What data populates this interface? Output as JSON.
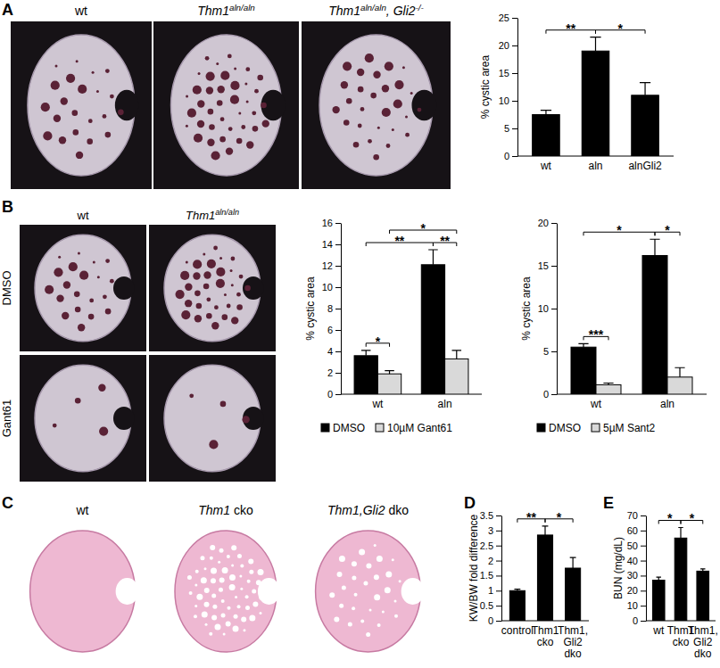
{
  "chart_data": [
    {
      "type": "image",
      "annotations": [
        "A"
      ],
      "labels": [
        [
          {
            "text": "wt"
          }
        ],
        [
          {
            "text": "Thm1",
            "italic": true
          },
          {
            "text": "aln/aln",
            "italic": true,
            "sup": true
          }
        ],
        [
          {
            "text": "Thm1",
            "italic": true
          },
          {
            "text": "aln/aln",
            "italic": true,
            "sup": true
          },
          {
            "text": ", Gli2",
            "italic": true
          },
          {
            "text": "-/-",
            "italic": true,
            "sup": true
          }
        ]
      ]
    },
    {
      "type": "bar",
      "y_label": "% cystic area",
      "categories": [
        "wt",
        "aln",
        "alnGli2"
      ],
      "values": [
        7.5,
        19,
        11
      ],
      "errors": [
        0.8,
        2.5,
        2.3
      ],
      "color": "#000000",
      "ylim": [
        0,
        25
      ],
      "yticks": [
        0,
        5,
        10,
        15,
        20,
        25
      ],
      "significance": [
        {
          "between": [
            "wt",
            "aln"
          ],
          "label": "**"
        },
        {
          "between": [
            "aln",
            "alnGli2"
          ],
          "label": "*"
        }
      ]
    },
    {
      "type": "image",
      "annotations": [
        "B"
      ],
      "columns": [
        [
          {
            "text": "wt"
          }
        ],
        [
          {
            "text": "Thm1",
            "italic": true
          },
          {
            "text": "aln/aln",
            "italic": true,
            "sup": true
          }
        ]
      ],
      "rows": [
        [
          {
            "text": "DMSO"
          }
        ],
        [
          {
            "text": "Gant61"
          }
        ]
      ]
    },
    {
      "type": "bar",
      "y_label": "% cystic area",
      "categories": [
        "wt",
        "aln"
      ],
      "series": [
        {
          "name": "DMSO",
          "color": "#000000",
          "values": [
            3.6,
            12.1
          ],
          "errors": [
            0.5,
            1.4
          ]
        },
        {
          "name": "10µM Gant61",
          "color": "#d9d9d9",
          "values": [
            1.9,
            3.3
          ],
          "errors": [
            0.3,
            0.8
          ]
        }
      ],
      "ylim": [
        0,
        16
      ],
      "yticks": [
        0,
        2,
        4,
        6,
        8,
        10,
        12,
        14,
        16
      ],
      "legend": "bottom",
      "significance": [
        {
          "between": [
            [
              "wt",
              "DMSO"
            ],
            [
              "wt",
              "10µM Gant61"
            ]
          ],
          "label": "*"
        },
        {
          "between": [
            [
              "aln",
              "DMSO"
            ],
            [
              "aln",
              "10µM Gant61"
            ]
          ],
          "label": "**"
        },
        {
          "between": [
            [
              "wt",
              "DMSO"
            ],
            [
              "aln",
              "DMSO"
            ]
          ],
          "label": "**"
        },
        {
          "between": [
            [
              "wt",
              "10µM Gant61"
            ],
            [
              "aln",
              "10µM Gant61"
            ]
          ],
          "label": "*"
        }
      ]
    },
    {
      "type": "bar",
      "y_label": "% cystic area",
      "categories": [
        "wt",
        "aln"
      ],
      "series": [
        {
          "name": "DMSO",
          "color": "#000000",
          "values": [
            5.5,
            16.2
          ],
          "errors": [
            0.4,
            1.9
          ]
        },
        {
          "name": "5µM Sant2",
          "color": "#d9d9d9",
          "values": [
            1.1,
            2.0
          ],
          "errors": [
            0.2,
            1.1
          ]
        }
      ],
      "ylim": [
        0,
        20
      ],
      "yticks": [
        0,
        5,
        10,
        15,
        20
      ],
      "legend": "bottom",
      "significance": [
        {
          "between": [
            [
              "wt",
              "DMSO"
            ],
            [
              "wt",
              "5µM Sant2"
            ]
          ],
          "label": "***"
        },
        {
          "between": [
            [
              "aln",
              "DMSO"
            ],
            [
              "aln",
              "5µM Sant2"
            ]
          ],
          "label": "*"
        },
        {
          "between": [
            [
              "wt",
              "DMSO"
            ],
            [
              "aln",
              "DMSO"
            ]
          ],
          "label": "*"
        }
      ]
    },
    {
      "type": "image",
      "annotations": [
        "C"
      ],
      "labels": [
        [
          {
            "text": "wt"
          }
        ],
        [
          {
            "text": "Thm1",
            "italic": true
          },
          {
            "text": " cko"
          }
        ],
        [
          {
            "text": "Thm1,Gli2",
            "italic": true
          },
          {
            "text": " dko"
          }
        ]
      ]
    },
    {
      "type": "bar",
      "annotations": [
        "D"
      ],
      "y_label": "KW/BW fold difference",
      "categories": [
        "control",
        "Thm1 cko",
        "Thm1, Gli2 dko"
      ],
      "values": [
        1.0,
        2.85,
        1.75
      ],
      "errors": [
        0.05,
        0.3,
        0.35
      ],
      "color": "#000000",
      "ylim": [
        0,
        3.5
      ],
      "yticks": [
        0,
        0.5,
        1,
        1.5,
        2,
        2.5,
        3,
        3.5
      ],
      "significance": [
        {
          "between": [
            "control",
            "Thm1 cko"
          ],
          "label": "**"
        },
        {
          "between": [
            "Thm1 cko",
            "Thm1, Gli2 dko"
          ],
          "label": "*"
        }
      ]
    },
    {
      "type": "bar",
      "annotations": [
        "E"
      ],
      "y_label": "BUN (mg/dL)",
      "categories": [
        "wt",
        "Thm1 cko",
        "Thm1, Gli2 dko"
      ],
      "values": [
        27,
        55,
        33
      ],
      "errors": [
        2,
        7,
        1.5
      ],
      "color": "#000000",
      "ylim": [
        0,
        70
      ],
      "yticks": [
        0,
        10,
        20,
        30,
        40,
        50,
        60,
        70
      ],
      "significance": [
        {
          "between": [
            "wt",
            "Thm1 cko"
          ],
          "label": "*"
        },
        {
          "between": [
            "Thm1 cko",
            "Thm1, Gli2 dko"
          ],
          "label": "*"
        }
      ]
    }
  ]
}
